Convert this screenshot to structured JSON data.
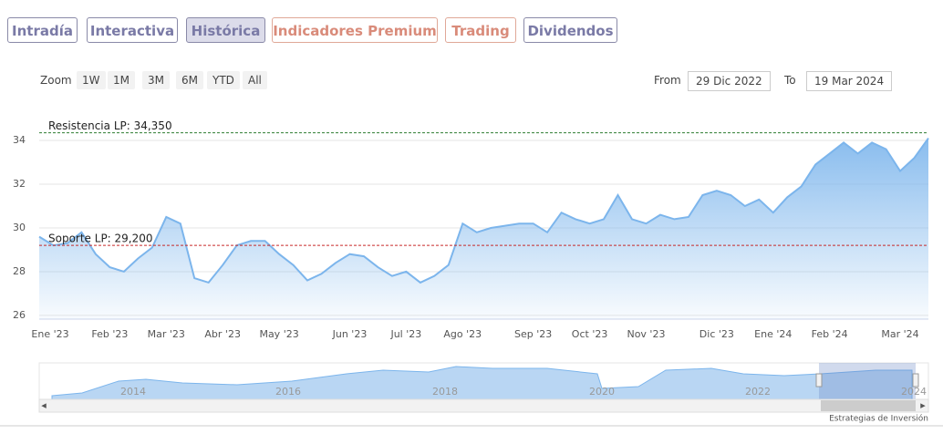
{
  "tabs": [
    "Intradía",
    "Interactiva",
    "Histórica",
    "Indicadores Premium",
    "Trading",
    "Dividendos"
  ],
  "toolbar": {
    "zoom_label": "Zoom",
    "zoom_buttons": [
      "1W",
      "1M",
      "3M",
      "6M",
      "YTD",
      "All"
    ],
    "from_label": "From",
    "from_date": "29 Dic 2022",
    "to_label": "To",
    "to_date": "19 Mar 2024"
  },
  "chart_data": {
    "type": "area",
    "categories": [
      "Ene '23",
      null,
      null,
      null,
      null,
      "Feb '23",
      null,
      null,
      null,
      "Mar '23",
      null,
      null,
      null,
      "Abr '23",
      null,
      null,
      null,
      "May '23",
      null,
      null,
      null,
      null,
      "Jun '23",
      null,
      null,
      null,
      "Jul '23",
      null,
      null,
      null,
      "Ago '23",
      null,
      null,
      null,
      null,
      "Sep '23",
      null,
      null,
      null,
      "Oct '23",
      null,
      null,
      null,
      "Nov '23",
      null,
      null,
      null,
      null,
      "Dic '23",
      null,
      null,
      null,
      "Ene '24",
      null,
      null,
      null,
      "Feb '24",
      null,
      null,
      null,
      null,
      "Mar '24",
      null,
      null
    ],
    "series": [
      {
        "color": "#7cb5ec",
        "values": [
          29.6,
          29.2,
          29.3,
          29.8,
          28.8,
          28.2,
          28.0,
          28.6,
          29.1,
          30.5,
          30.2,
          27.7,
          27.5,
          28.3,
          29.2,
          29.4,
          29.4,
          28.8,
          28.3,
          27.6,
          27.9,
          28.4,
          28.8,
          28.7,
          28.2,
          27.8,
          28.0,
          27.5,
          27.8,
          28.3,
          30.2,
          29.8,
          30.0,
          30.1,
          30.2,
          30.2,
          29.8,
          30.7,
          30.4,
          30.2,
          30.4,
          31.5,
          30.4,
          30.2,
          30.6,
          30.4,
          30.5,
          31.5,
          31.7,
          31.5,
          31.0,
          31.3,
          30.7,
          31.4,
          31.9,
          32.9,
          33.4,
          33.9,
          33.4,
          33.9,
          33.6,
          32.6,
          33.2,
          34.1
        ]
      }
    ],
    "ylim": [
      25.83,
      35.75
    ],
    "yticks": [
      26,
      28,
      30,
      32,
      34
    ],
    "grid": true,
    "lines": [
      {
        "label": "Resistencia LP: 34,350",
        "value": 34.35,
        "color": "#2e7d32"
      },
      {
        "label": "Soporte LP: 29,200",
        "value": 29.2,
        "color": "#c62828"
      }
    ]
  },
  "navigator": {
    "years": [
      "2014",
      "2016",
      "2018",
      "2020",
      "2022",
      "2024"
    ]
  },
  "credit": "Estrategias de Inversión"
}
